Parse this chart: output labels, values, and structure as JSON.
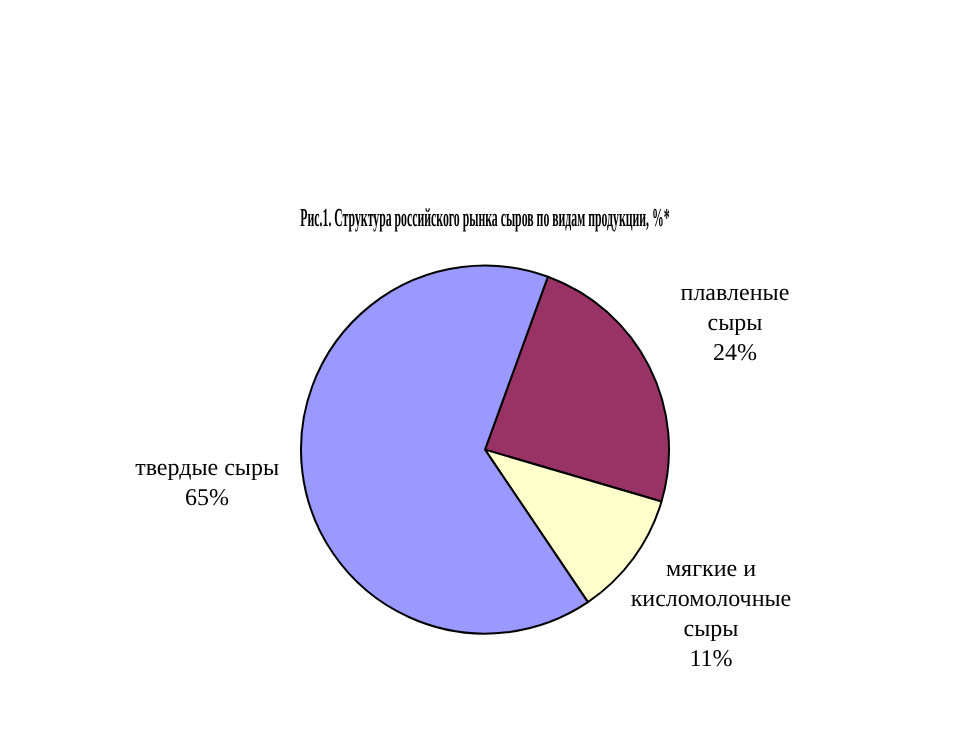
{
  "chart_data": {
    "type": "pie",
    "title": "Рис.1. Структура российского рынка сыров по видам продукции, %*",
    "categories": [
      "плавленые сыры",
      "мягкие и кисломолочные сыры",
      "твердые сыры"
    ],
    "values": [
      24,
      11,
      65
    ],
    "value_labels": [
      "24%",
      "11%",
      "65%"
    ],
    "colors": [
      "#993366",
      "#ffffcc",
      "#9999ff"
    ],
    "legend": false
  }
}
